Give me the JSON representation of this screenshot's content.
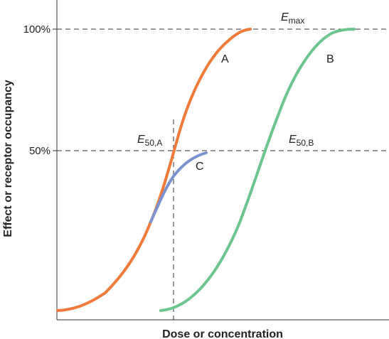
{
  "chart_data": {
    "type": "line",
    "xlabel": "Dose or concentration",
    "ylabel": "Effect or receptor occupancy",
    "ylim": [
      0,
      100
    ],
    "y_ticks": [
      {
        "value": 50,
        "label": "50%"
      },
      {
        "value": 100,
        "label": "100%"
      }
    ],
    "grid": false,
    "reference_lines": [
      {
        "orientation": "horizontal",
        "value": 100,
        "style": "dashed"
      },
      {
        "orientation": "horizontal",
        "value": 50,
        "style": "dashed"
      },
      {
        "orientation": "vertical",
        "at": "E50,A",
        "style": "dashed"
      }
    ],
    "annotations": {
      "emax": {
        "main": "E",
        "sub": "max"
      },
      "e50a": {
        "main": "E",
        "sub": "50,A"
      },
      "e50b": {
        "main": "E",
        "sub": "50,B"
      }
    },
    "series": [
      {
        "name": "A",
        "color": "#ef7a3a",
        "relative_position": 0.0,
        "max_effect": 100
      },
      {
        "name": "B",
        "color": "#6cc58f",
        "relative_position": 1.0,
        "max_effect": 100
      },
      {
        "name": "C",
        "color": "#7b93d1",
        "relative_position": 0.0,
        "max_effect": 50
      }
    ]
  }
}
